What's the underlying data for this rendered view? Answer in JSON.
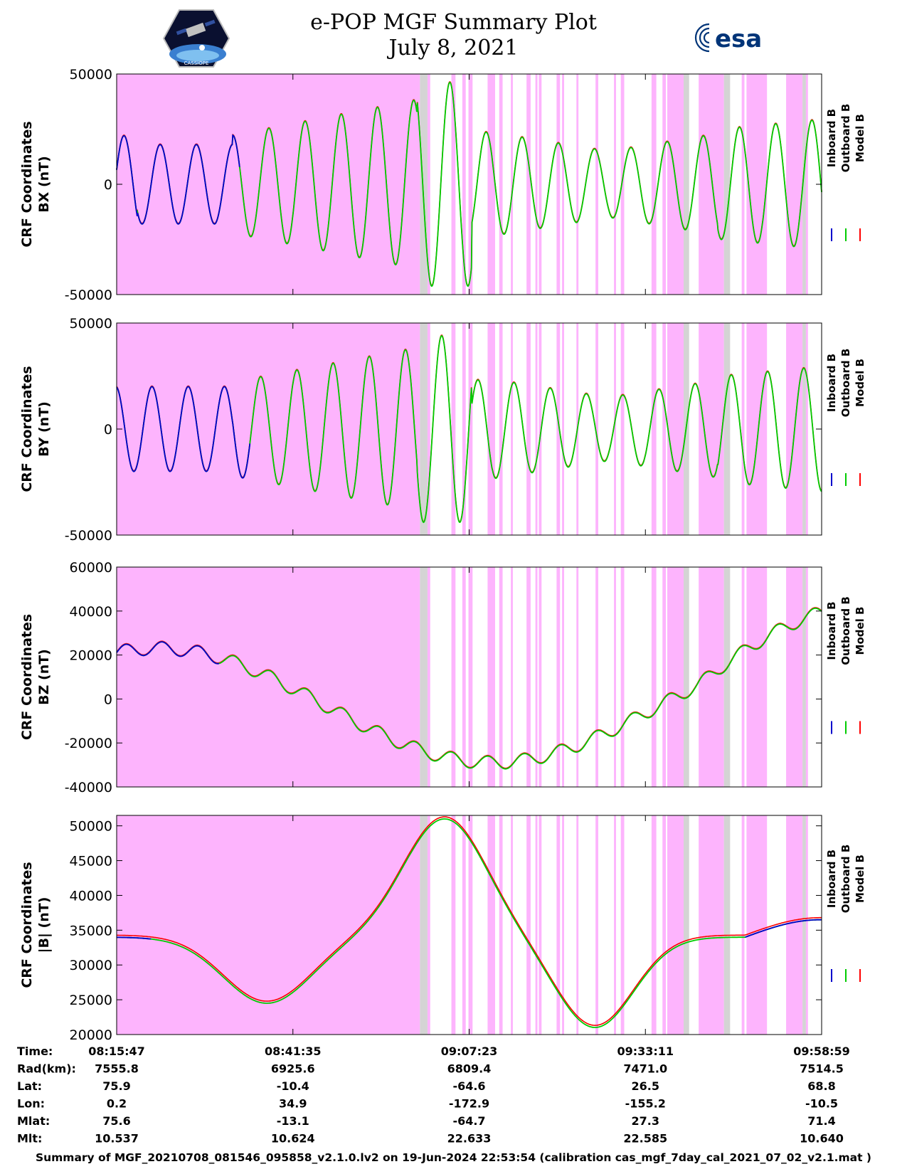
{
  "header": {
    "title_line1": "e-POP MGF Summary Plot",
    "title_line2": "July 8, 2021",
    "left_logo_text": "CASSIOPE",
    "right_logo_text": "esa"
  },
  "colors": {
    "inboard": "#0000cc",
    "outboard": "#00cc00",
    "model": "#ff0000",
    "shade_magenta": "#fdb4fd",
    "shade_gray": "#d4d4d4"
  },
  "legend": [
    "Inboard B",
    "Outboard B",
    "Model B"
  ],
  "chart_data": [
    {
      "type": "line",
      "ylabel_line1": "CRF Coordinates",
      "ylabel_line2": "BX (nT)",
      "ylim": [
        -50000,
        50000
      ],
      "yticks": [
        "50000",
        "0",
        "-50000"
      ],
      "ytick_values": [
        50000,
        0,
        -50000
      ]
    },
    {
      "type": "line",
      "ylabel_line1": "CRF Coordinates",
      "ylabel_line2": "BY (nT)",
      "ylim": [
        -50000,
        50000
      ],
      "yticks": [
        "50000",
        "0",
        "-50000"
      ],
      "ytick_values": [
        50000,
        0,
        -50000
      ]
    },
    {
      "type": "line",
      "ylabel_line1": "CRF Coordinates",
      "ylabel_line2": "BZ (nT)",
      "ylim": [
        -40000,
        60000
      ],
      "yticks": [
        "60000",
        "40000",
        "20000",
        "0",
        "-20000",
        "-40000"
      ],
      "ytick_values": [
        60000,
        40000,
        20000,
        0,
        -20000,
        -40000
      ]
    },
    {
      "type": "line",
      "ylabel_line1": "CRF Coordinates",
      "ylabel_line2": "|B| (nT)",
      "ylim": [
        20000,
        51500
      ],
      "yticks": [
        "50000",
        "45000",
        "40000",
        "35000",
        "30000",
        "25000",
        "20000"
      ],
      "ytick_values": [
        50000,
        45000,
        40000,
        35000,
        30000,
        25000,
        20000
      ]
    }
  ],
  "time_axis": {
    "xlim_minutes": [
      0,
      103.2
    ],
    "tick_minutes": [
      0,
      25.8,
      51.6,
      77.4,
      103.2
    ],
    "rows": [
      {
        "label": "Time:",
        "values": [
          "08:15:47",
          "08:41:35",
          "09:07:23",
          "09:33:11",
          "09:58:59"
        ]
      },
      {
        "label": "Rad(km):",
        "values": [
          "7555.8",
          "6925.6",
          "6809.4",
          "7471.0",
          "7514.5"
        ]
      },
      {
        "label": "Lat:",
        "values": [
          "75.9",
          "-10.4",
          "-64.6",
          "26.5",
          "68.8"
        ]
      },
      {
        "label": "Lon:",
        "values": [
          "0.2",
          "34.9",
          "-172.9",
          "-155.2",
          "-10.5"
        ]
      },
      {
        "label": "Mlat:",
        "values": [
          "75.6",
          "-13.1",
          "-64.7",
          "27.3",
          "71.4"
        ]
      },
      {
        "label": "Mlt:",
        "values": [
          "10.537",
          "10.624",
          "22.633",
          "22.585",
          "10.640"
        ]
      }
    ]
  },
  "footer": "Summary of MGF_20210708_081546_095858_v2.1.0.lv2 on 19-Jun-2024 22:53:54 (calibration cas_mgf_7day_cal_2021_07_02_v2.1.mat )"
}
